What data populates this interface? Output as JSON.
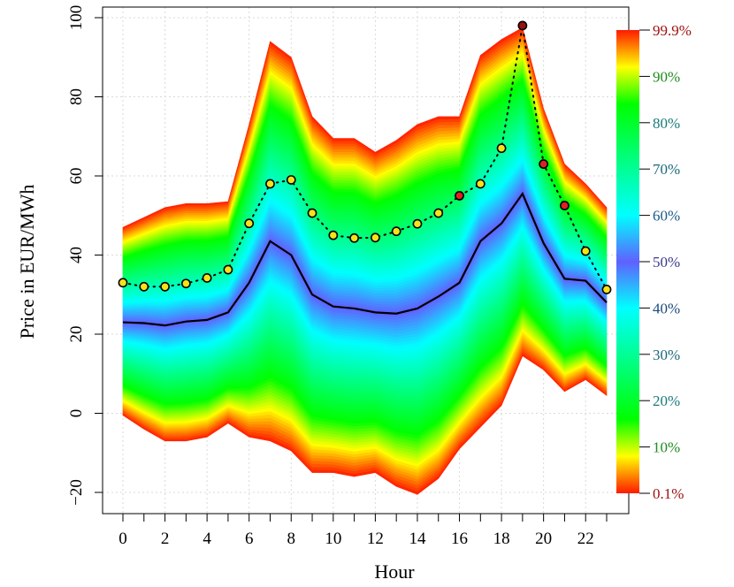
{
  "chart_data": {
    "type": "area",
    "xlabel": "Hour",
    "ylabel": "Price in EUR/MWh",
    "xlim": [
      0,
      23
    ],
    "ylim": [
      -20,
      100
    ],
    "x_ticks": [
      0,
      2,
      4,
      6,
      8,
      10,
      12,
      14,
      16,
      18,
      20,
      22
    ],
    "y_ticks": [
      -20,
      0,
      20,
      40,
      60,
      80,
      100
    ],
    "grid": true,
    "legend_position": "right",
    "x": [
      0,
      1,
      2,
      3,
      4,
      5,
      6,
      7,
      8,
      9,
      10,
      11,
      12,
      13,
      14,
      15,
      16,
      17,
      18,
      19,
      20,
      21,
      22,
      23
    ],
    "quantile_bands": {
      "q001": [
        -0.5,
        -4,
        -7,
        -7,
        -6,
        -2.5,
        -6,
        -7,
        -9.5,
        -15,
        -15,
        -16,
        -15,
        -18.5,
        -20.5,
        -16.5,
        -9,
        -3.5,
        2,
        14.5,
        11,
        5.5,
        8.5,
        4.5
      ],
      "q999": [
        47,
        49.5,
        52,
        53,
        53,
        53.5,
        73,
        94,
        90,
        75,
        69.5,
        69.5,
        66,
        69,
        73,
        75,
        75,
        90.5,
        94.5,
        97.5,
        77,
        63,
        58,
        52
      ]
    },
    "series": [
      {
        "name": "",
        "style": "solid",
        "values": [
          23,
          22.8,
          22.2,
          23.2,
          23.6,
          25.5,
          33,
          43.5,
          40,
          30,
          27,
          26.5,
          25.5,
          25.2,
          26.5,
          29.5,
          33,
          43.5,
          48,
          55.5,
          43,
          34,
          33.5,
          28
        ]
      },
      {
        "name": "",
        "style": "dotted-points",
        "values": [
          33,
          32,
          32,
          32.8,
          34.2,
          36.3,
          48,
          58,
          59,
          50.6,
          45,
          44.3,
          44.4,
          46,
          47.9,
          50.6,
          55,
          58,
          67,
          98,
          63,
          52.5,
          41,
          31.3
        ]
      }
    ],
    "legend": {
      "labels": [
        "99.9%",
        "90%",
        "80%",
        "70%",
        "60%",
        "50%",
        "40%",
        "30%",
        "20%",
        "10%",
        "0.1%"
      ],
      "label_colors": [
        "#a01010",
        "#1e8b1e",
        "#1a7a7a",
        "#1a6a7a",
        "#1a5a8a",
        "#3a3a8a",
        "#1a4a7a",
        "#1a6a7a",
        "#1a7a7a",
        "#1e8b1e",
        "#a01010"
      ]
    },
    "point_colors": {
      "outer_yellow": "#f5e21a",
      "red": "#e02020",
      "dark_red": "#9a1010"
    }
  }
}
